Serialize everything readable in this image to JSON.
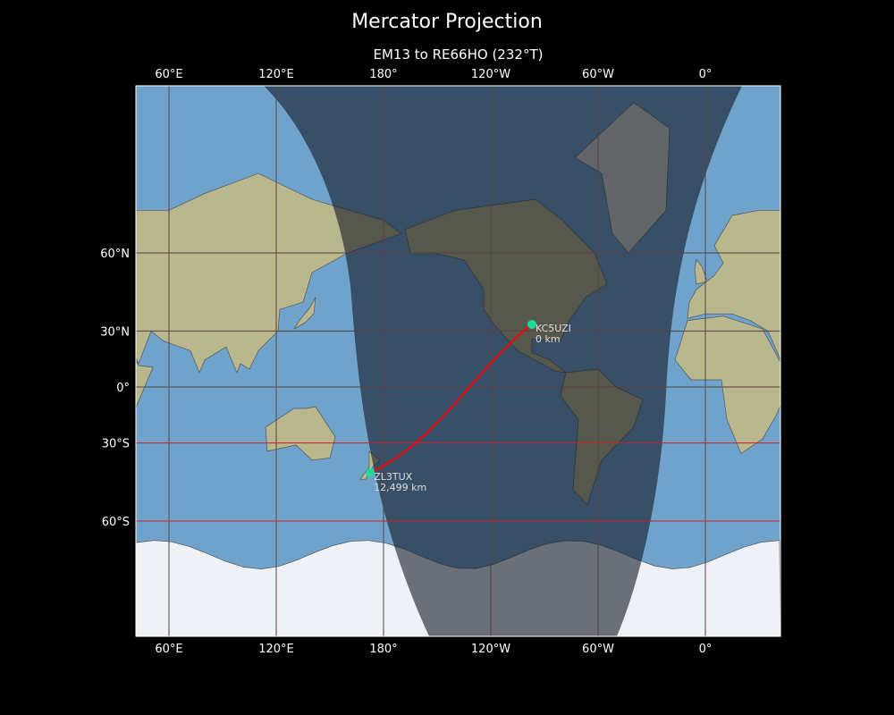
{
  "title": "Mercator Projection",
  "subtitle": "EM13 to RE66HO (232°T)",
  "colors": {
    "ocean": "#6fa3cc",
    "land": "#b9b78e",
    "ice": "#eef1f6",
    "night_overlay": "rgba(20,25,35,0.6)",
    "path": "#ff0000",
    "marker": "#1ed79a",
    "gridline": "#5a4040",
    "gridline_south": "#cc2020"
  },
  "map": {
    "projection": "Mercator",
    "lon_ticks": [
      {
        "lon": 60,
        "label": "60°E"
      },
      {
        "lon": 120,
        "label": "120°E"
      },
      {
        "lon": 180,
        "label": "180°"
      },
      {
        "lon": -120,
        "label": "120°W"
      },
      {
        "lon": -60,
        "label": "60°W"
      },
      {
        "lon": 0,
        "label": "0°"
      }
    ],
    "lat_ticks": [
      {
        "lat": 60,
        "label": "60°N"
      },
      {
        "lat": 30,
        "label": "30°N"
      },
      {
        "lat": 0,
        "label": "0°"
      },
      {
        "lat": -30,
        "label": "30°S"
      },
      {
        "lat": -60,
        "label": "60°S"
      }
    ],
    "stations": [
      {
        "call": "KC5UZI",
        "distance": "0 km",
        "lat": 33.2,
        "lon": -97.0
      },
      {
        "call": "ZL3TUX",
        "distance": "12,499 km",
        "lat": -43.4,
        "lon": 172.6
      }
    ]
  }
}
